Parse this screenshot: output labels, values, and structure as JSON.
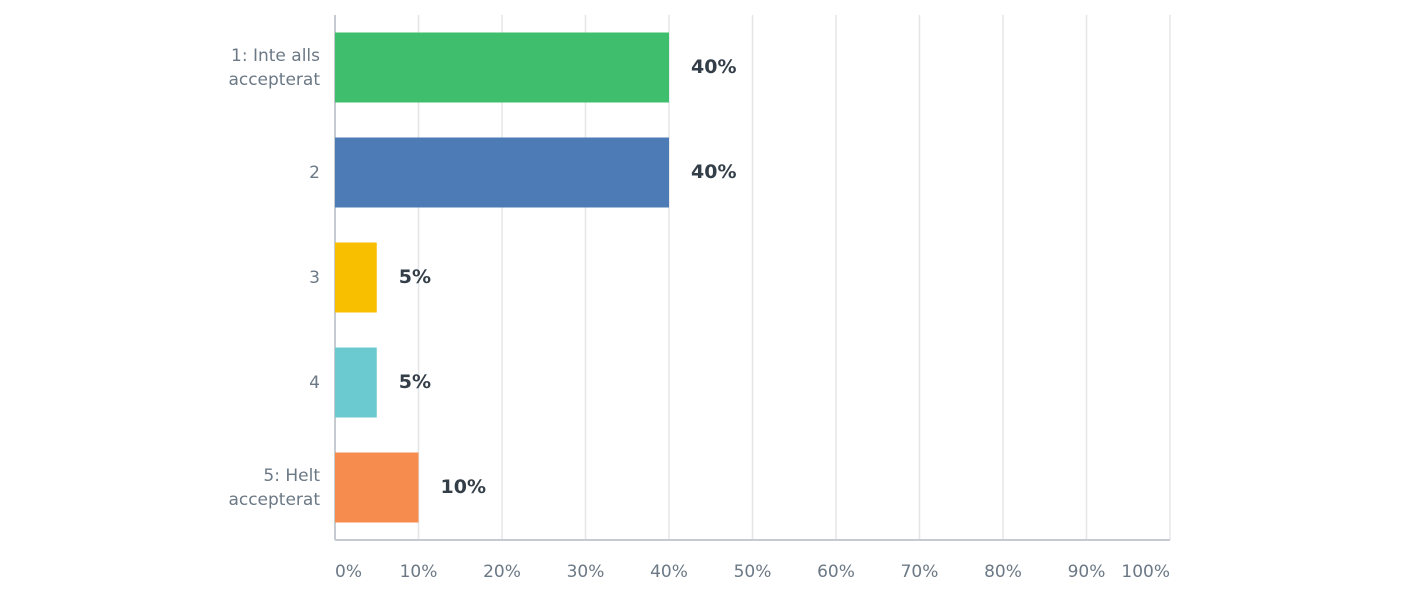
{
  "chart_data": {
    "type": "hbar",
    "categories": [
      "1: Inte alls accepterat",
      "2",
      "3",
      "4",
      "5: Helt accepterat"
    ],
    "values": [
      40,
      40,
      5,
      5,
      10
    ],
    "value_labels": [
      "40%",
      "40%",
      "5%",
      "5%",
      "10%"
    ],
    "colors": [
      "#3fbf6d",
      "#4c7bb6",
      "#f8be00",
      "#6bcad0",
      "#f78c4f"
    ],
    "xlim": [
      0,
      100
    ],
    "xticks": [
      {
        "value": 0,
        "label": "0%"
      },
      {
        "value": 10,
        "label": "10%"
      },
      {
        "value": 20,
        "label": "20%"
      },
      {
        "value": 30,
        "label": "30%"
      },
      {
        "value": 40,
        "label": "40%"
      },
      {
        "value": 50,
        "label": "50%"
      },
      {
        "value": 60,
        "label": "60%"
      },
      {
        "value": 70,
        "label": "70%"
      },
      {
        "value": 80,
        "label": "80%"
      },
      {
        "value": 90,
        "label": "90%"
      },
      {
        "value": 100,
        "label": "100%"
      }
    ],
    "grid": true
  }
}
